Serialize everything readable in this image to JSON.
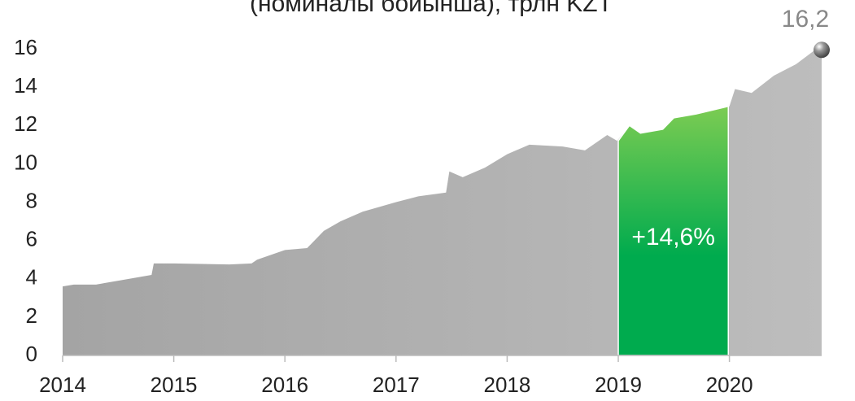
{
  "chart_data": {
    "type": "area",
    "title": "(номиналы бойынша), трлн KZT",
    "xlim": [
      2014,
      2020.83
    ],
    "xticks": [
      2014,
      2015,
      2016,
      2017,
      2018,
      2019,
      2020
    ],
    "ylim": [
      0,
      16
    ],
    "yticks": [
      0,
      2,
      4,
      6,
      8,
      10,
      12,
      14,
      16
    ],
    "series": [
      {
        "color": "#aaaaaa",
        "x": [
          2014,
          2014.1,
          2014.3,
          2014.5,
          2014.7,
          2014.8,
          2014.82,
          2015,
          2015.5,
          2015.7,
          2015.75,
          2015.8,
          2016,
          2016.2,
          2016.25,
          2016.35,
          2016.5,
          2016.7,
          2017,
          2017.2,
          2017.45,
          2017.48,
          2017.6,
          2017.8,
          2018,
          2018.2,
          2018.5,
          2018.7,
          2018.9,
          2018.99,
          2019.1,
          2019.2,
          2019.4,
          2019.5,
          2019.7,
          2019.99,
          2020,
          2020.05,
          2020.2,
          2020.4,
          2020.6,
          2020.83
        ],
        "values": [
          3.6,
          3.7,
          3.7,
          3.9,
          4.1,
          4.2,
          4.8,
          4.8,
          4.75,
          4.8,
          5.0,
          5.1,
          5.5,
          5.6,
          5.9,
          6.5,
          7.0,
          7.5,
          8.0,
          8.3,
          8.5,
          9.6,
          9.3,
          9.8,
          10.5,
          11.0,
          10.9,
          10.7,
          11.5,
          11.2,
          12.0,
          11.6,
          11.8,
          12.4,
          12.6,
          13.0,
          13.0,
          13.9,
          13.7,
          14.6,
          15.2,
          16.2
        ]
      },
      {
        "color": "#00ab4e",
        "x": [
          2019,
          2019.1,
          2019.2,
          2019.4,
          2019.5,
          2019.7,
          2019.99
        ],
        "values": [
          11.2,
          12.0,
          11.6,
          11.8,
          12.4,
          12.6,
          13.0
        ]
      },
      {
        "color": "#777777",
        "x": [
          2020.83
        ],
        "values": [
          16.2
        ],
        "value_labels": [
          "16,2"
        ]
      }
    ],
    "annotation": "+14,6%"
  }
}
